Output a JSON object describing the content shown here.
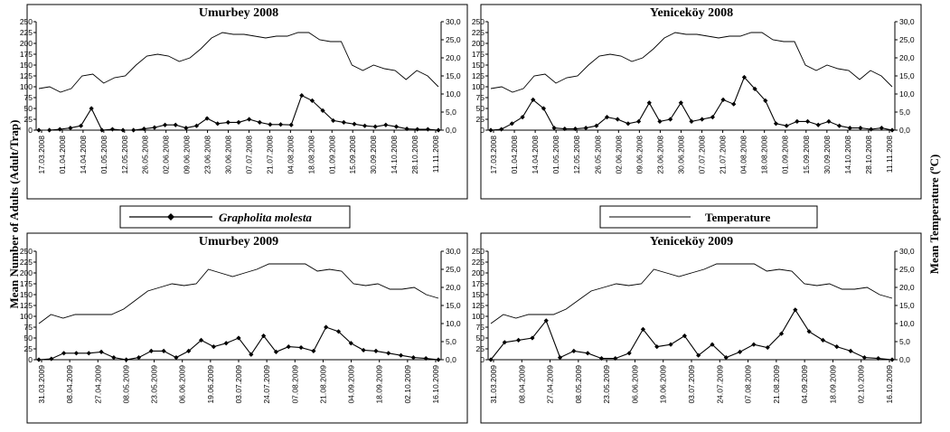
{
  "y_axis_left_label": "Mean Number of Adults (Adult/Trap)",
  "y_axis_right_label": "Mean Temperature (ºC)",
  "legend": {
    "moth_label": "Grapholita molesta",
    "temp_label": "Temperature"
  },
  "chart_data": [
    {
      "type": "line",
      "title": "Umurbey 2008",
      "x_tick_labels": [
        "17.03.2008",
        "01.04.2008",
        "14.04.2008",
        "01.05.2008",
        "12.05.2008",
        "26.05.2008",
        "02.06.2008",
        "09.06.2008",
        "23.06.2008",
        "30.06.2008",
        "07.07.2008",
        "21.07.2008",
        "04.08.2008",
        "18.08.2008",
        "01.09.2008",
        "15.09.2008",
        "30.09.2008",
        "14.10.2008",
        "28.10.2008",
        "11.11.2008"
      ],
      "ylim_left": [
        0,
        250
      ],
      "yticks_left": [
        "0",
        "25",
        "50",
        "75",
        "100",
        "125",
        "150",
        "175",
        "200",
        "225",
        "250"
      ],
      "ylim_right": [
        0,
        30
      ],
      "yticks_right": [
        "0,0",
        "5,0",
        "10,0",
        "15,0",
        "20,0",
        "25,0",
        "30,0"
      ],
      "series": [
        {
          "name": "Grapholita molesta",
          "values": [
            0,
            0,
            2,
            5,
            10,
            50,
            0,
            2,
            0,
            0,
            3,
            6,
            12,
            12,
            5,
            10,
            27,
            15,
            18,
            18,
            25,
            18,
            13,
            13,
            12,
            80,
            68,
            45,
            22,
            18,
            14,
            10,
            8,
            12,
            8,
            3,
            2,
            2,
            0
          ]
        },
        {
          "name": "Temperature",
          "values": [
            11.5,
            12,
            10.5,
            11.5,
            15,
            15.5,
            13,
            14.5,
            15,
            18,
            20.5,
            21,
            20.5,
            19,
            20,
            22.5,
            25.5,
            27,
            26.5,
            26.5,
            26,
            25.5,
            26,
            26,
            27,
            27,
            25,
            24.5,
            24.5,
            18,
            16.5,
            18,
            17,
            16.5,
            14,
            16.5,
            15,
            12
          ]
        }
      ]
    },
    {
      "type": "line",
      "title": "Yeniceköy 2008",
      "x_tick_labels": [
        "17.03.2008",
        "01.04.2008",
        "14.04.2008",
        "01.05.2008",
        "12.05.2008",
        "26.05.2008",
        "02.06.2008",
        "09.06.2008",
        "23.06.2008",
        "30.06.2008",
        "07.07.2008",
        "21.07.2008",
        "04.08.2008",
        "18.08.2008",
        "01.09.2008",
        "15.09.2008",
        "30.09.2008",
        "14.10.2008",
        "28.10.2008",
        "11.11.2008"
      ],
      "ylim_left": [
        0,
        250
      ],
      "yticks_left": [
        "0",
        "25",
        "50",
        "75",
        "100",
        "125",
        "150",
        "175",
        "200",
        "225",
        "250"
      ],
      "ylim_right": [
        0,
        30
      ],
      "yticks_right": [
        "0,0",
        "5,0",
        "10,0",
        "15,0",
        "20,0",
        "25,0",
        "30,0"
      ],
      "series": [
        {
          "name": "Grapholita molesta",
          "values": [
            0,
            2,
            15,
            30,
            70,
            50,
            5,
            3,
            3,
            5,
            10,
            30,
            25,
            15,
            20,
            63,
            20,
            25,
            63,
            20,
            25,
            30,
            70,
            60,
            122,
            95,
            68,
            15,
            10,
            20,
            20,
            12,
            20,
            10,
            5,
            5,
            2,
            5,
            0
          ]
        },
        {
          "name": "Temperature",
          "values": [
            11.5,
            12,
            10.5,
            11.5,
            15,
            15.5,
            13,
            14.5,
            15,
            18,
            20.5,
            21,
            20.5,
            19,
            20,
            22.5,
            25.5,
            27,
            26.5,
            26.5,
            26,
            25.5,
            26,
            26,
            27,
            27,
            25,
            24.5,
            24.5,
            18,
            16.5,
            18,
            17,
            16.5,
            14,
            16.5,
            15,
            12
          ]
        }
      ]
    },
    {
      "type": "line",
      "title": "Umurbey 2009",
      "x_tick_labels": [
        "31.03.2009",
        "08.04.2009",
        "27.04.2009",
        "08.05.2009",
        "23.05.2009",
        "06.06.2009",
        "19.06.2009",
        "03.07.2009",
        "24.07.2009",
        "07.08.2009",
        "21.08.2009",
        "04.09.2009",
        "18.09.2009",
        "02.10.2009",
        "16.10.2009"
      ],
      "ylim_left": [
        0,
        250
      ],
      "yticks_left": [
        "0",
        "25",
        "50",
        "75",
        "100",
        "125",
        "150",
        "175",
        "200",
        "225",
        "250"
      ],
      "ylim_right": [
        0,
        30
      ],
      "yticks_right": [
        "0,0",
        "5,0",
        "10,0",
        "15,0",
        "20,0",
        "25,0",
        "30,0"
      ],
      "series": [
        {
          "name": "Grapholita molesta",
          "values": [
            0,
            2,
            15,
            15,
            15,
            18,
            5,
            0,
            5,
            20,
            20,
            5,
            20,
            45,
            30,
            38,
            50,
            12,
            55,
            18,
            30,
            28,
            20,
            75,
            65,
            38,
            22,
            20,
            15,
            10,
            5,
            3,
            0
          ]
        },
        {
          "name": "Temperature",
          "values": [
            10,
            12.5,
            11.5,
            12.5,
            12.5,
            12.5,
            12.5,
            14,
            16.5,
            19,
            20,
            21,
            20.5,
            21,
            25,
            24,
            23,
            24,
            25,
            26.5,
            26.5,
            26.5,
            26.5,
            24.5,
            25,
            24.5,
            21,
            20.5,
            21,
            19.5,
            19.5,
            20,
            18,
            17
          ]
        }
      ]
    },
    {
      "type": "line",
      "title": "Yeniceköy 2009",
      "x_tick_labels": [
        "31.03.2009",
        "08.04.2009",
        "27.04.2009",
        "08.05.2009",
        "23.05.2009",
        "06.06.2009",
        "19.06.2009",
        "03.07.2009",
        "24.07.2009",
        "07.08.2009",
        "21.08.2009",
        "04.09.2009",
        "18.09.2009",
        "02.10.2009",
        "16.10.2009"
      ],
      "ylim_left": [
        0,
        250
      ],
      "yticks_left": [
        "0",
        "25",
        "50",
        "75",
        "100",
        "125",
        "150",
        "175",
        "200",
        "225",
        "250"
      ],
      "ylim_right": [
        0,
        30
      ],
      "yticks_right": [
        "0,0",
        "5,0",
        "10,0",
        "15,0",
        "20,0",
        "25,0",
        "30,0"
      ],
      "series": [
        {
          "name": "Grapholita molesta",
          "values": [
            0,
            40,
            45,
            50,
            90,
            5,
            20,
            15,
            3,
            3,
            15,
            70,
            30,
            35,
            55,
            10,
            35,
            5,
            18,
            35,
            28,
            60,
            115,
            65,
            45,
            30,
            20,
            5,
            3,
            0
          ]
        },
        {
          "name": "Temperature",
          "values": [
            10,
            12.5,
            11.5,
            12.5,
            12.5,
            12.5,
            14,
            16.5,
            19,
            20,
            21,
            20.5,
            21,
            25,
            24,
            23,
            24,
            25,
            26.5,
            26.5,
            26.5,
            26.5,
            24.5,
            25,
            24.5,
            21,
            20.5,
            21,
            19.5,
            19.5,
            20,
            18,
            17
          ]
        }
      ]
    }
  ]
}
